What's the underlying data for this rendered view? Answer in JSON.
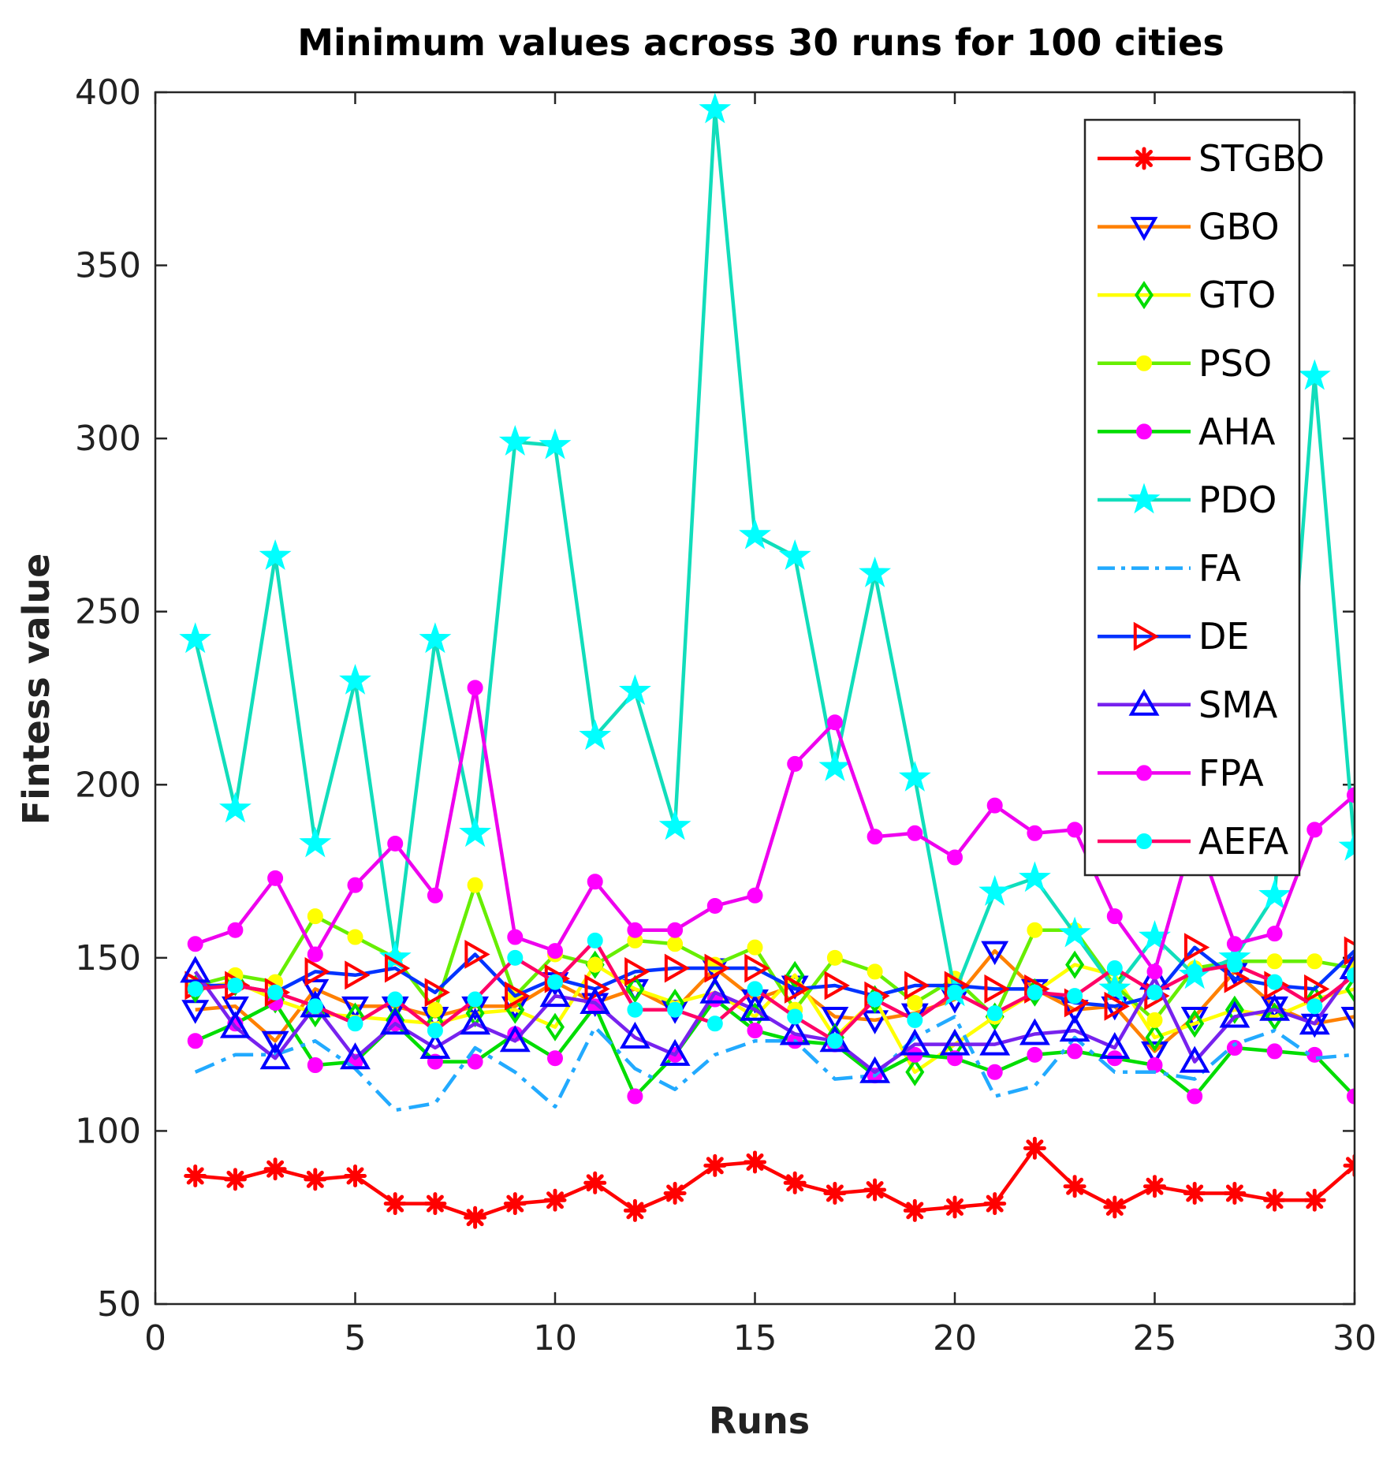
{
  "chart_data": {
    "type": "line",
    "title": "Minimum values across 30 runs for 100 cities",
    "xlabel": "Runs",
    "ylabel": "Fintess value",
    "xlim": [
      0,
      30
    ],
    "ylim": [
      50,
      400
    ],
    "xticks": [
      0,
      5,
      10,
      15,
      20,
      25,
      30
    ],
    "yticks": [
      50,
      100,
      150,
      200,
      250,
      300,
      350,
      400
    ],
    "legend_position": "top-right",
    "x": [
      1,
      2,
      3,
      4,
      5,
      6,
      7,
      8,
      9,
      10,
      11,
      12,
      13,
      14,
      15,
      16,
      17,
      18,
      19,
      20,
      21,
      22,
      23,
      24,
      25,
      26,
      27,
      28,
      29,
      30
    ],
    "series": [
      {
        "name": "STGBO",
        "color": "#ff0000",
        "marker_color": "#ff0000",
        "marker": "asterisk",
        "dash": "",
        "values": [
          87,
          86,
          89,
          86,
          87,
          79,
          79,
          75,
          79,
          80,
          85,
          77,
          82,
          90,
          91,
          85,
          82,
          83,
          77,
          78,
          79,
          95,
          84,
          78,
          84,
          82,
          82,
          80,
          80,
          90
        ]
      },
      {
        "name": "GBO",
        "color": "#ff8000",
        "marker_color": "#0000ff",
        "marker": "triangle-down",
        "dash": "",
        "values": [
          135,
          136,
          126,
          141,
          136,
          136,
          133,
          136,
          136,
          143,
          137,
          141,
          135,
          147,
          138,
          142,
          133,
          132,
          134,
          138,
          152,
          141,
          135,
          136,
          123,
          133,
          146,
          136,
          131,
          133
        ]
      },
      {
        "name": "GTO",
        "color": "#ffff00",
        "marker_color": "#00dd00",
        "marker": "diamond",
        "dash": "",
        "values": [
          141,
          143,
          138,
          134,
          133,
          132,
          131,
          134,
          135,
          130,
          148,
          141,
          137,
          140,
          133,
          145,
          127,
          138,
          117,
          125,
          133,
          140,
          148,
          145,
          127,
          131,
          135,
          133,
          138,
          141
        ]
      },
      {
        "name": "PSO",
        "color": "#66ee00",
        "marker_color": "#ffff00",
        "marker": "dot",
        "dash": "",
        "values": [
          142,
          145,
          143,
          162,
          156,
          150,
          135,
          171,
          139,
          151,
          148,
          155,
          154,
          148,
          153,
          135,
          150,
          146,
          137,
          144,
          133,
          158,
          158,
          142,
          132,
          147,
          149,
          149,
          149,
          147
        ]
      },
      {
        "name": "AHA",
        "color": "#00dd00",
        "marker_color": "#ff00ff",
        "marker": "dot",
        "dash": "",
        "values": [
          126,
          131,
          137,
          119,
          120,
          131,
          120,
          120,
          128,
          121,
          136,
          110,
          122,
          138,
          129,
          126,
          125,
          116,
          122,
          121,
          117,
          122,
          123,
          121,
          119,
          110,
          124,
          123,
          122,
          110
        ]
      },
      {
        "name": "PDO",
        "color": "#11ddbb",
        "marker_color": "#00ffff",
        "marker": "pentagram",
        "dash": "",
        "values": [
          242,
          193,
          266,
          183,
          230,
          150,
          242,
          186,
          299,
          298,
          214,
          227,
          188,
          395,
          272,
          266,
          205,
          261,
          202,
          140,
          169,
          173,
          157,
          141,
          156,
          145,
          150,
          168,
          318,
          182
        ]
      },
      {
        "name": "FA",
        "color": "#22aaff",
        "marker_color": "#22aaff",
        "marker": "none",
        "dash": "26,10,6,10",
        "values": [
          117,
          122,
          122,
          126,
          118,
          106,
          108,
          124,
          117,
          107,
          130,
          118,
          112,
          122,
          126,
          126,
          115,
          116,
          127,
          133,
          110,
          113,
          127,
          117,
          117,
          115,
          125,
          129,
          121,
          122
        ]
      },
      {
        "name": "DE",
        "color": "#0033ff",
        "marker_color": "#ff0000",
        "marker": "triangle-right",
        "dash": "",
        "values": [
          142,
          142,
          140,
          146,
          145,
          147,
          140,
          151,
          139,
          144,
          141,
          146,
          147,
          147,
          147,
          141,
          142,
          139,
          142,
          142,
          141,
          141,
          137,
          136,
          139,
          153,
          144,
          142,
          141,
          152
        ]
      },
      {
        "name": "SMA",
        "color": "#7722ee",
        "marker_color": "#0000ff",
        "marker": "triangle-up",
        "dash": "",
        "values": [
          146,
          130,
          121,
          136,
          121,
          131,
          124,
          131,
          126,
          139,
          137,
          127,
          122,
          140,
          135,
          128,
          126,
          117,
          125,
          125,
          125,
          128,
          129,
          124,
          144,
          120,
          133,
          135,
          131,
          147
        ]
      },
      {
        "name": "FPA",
        "color": "#ee00ee",
        "marker_color": "#ff00ff",
        "marker": "dot",
        "dash": "",
        "values": [
          154,
          158,
          173,
          151,
          171,
          183,
          168,
          228,
          156,
          152,
          172,
          158,
          158,
          165,
          168,
          206,
          218,
          185,
          186,
          179,
          194,
          186,
          187,
          162,
          146,
          187,
          154,
          157,
          187,
          197
        ]
      },
      {
        "name": "AEFA",
        "color": "#ff0066",
        "marker_color": "#00ffff",
        "marker": "dot",
        "dash": "",
        "values": [
          141,
          142,
          140,
          136,
          131,
          138,
          129,
          138,
          150,
          143,
          155,
          135,
          135,
          131,
          141,
          133,
          126,
          138,
          132,
          140,
          134,
          140,
          139,
          147,
          140,
          146,
          148,
          143,
          136,
          145
        ]
      }
    ]
  }
}
